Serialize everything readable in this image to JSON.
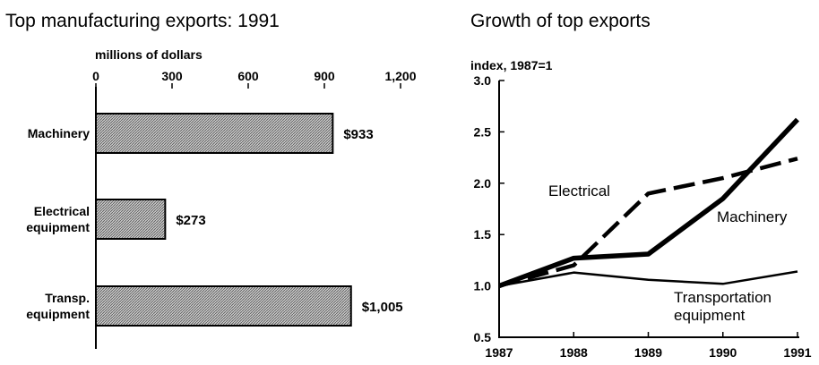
{
  "chart_data": [
    {
      "type": "bar",
      "orientation": "horizontal",
      "title": "Top manufacturing exports: 1991",
      "xlabel": "millions of dollars",
      "xlim": [
        0,
        1200
      ],
      "xticks": [
        "0",
        "300",
        "600",
        "900",
        "1,200"
      ],
      "categories": [
        [
          "Machinery"
        ],
        [
          "Electrical",
          "equipment"
        ],
        [
          "Transp.",
          "equipment"
        ]
      ],
      "values": [
        933,
        273,
        1005
      ],
      "value_labels": [
        "$933",
        "$273",
        "$1,005"
      ],
      "bar_fill": "hatched gray",
      "grid": false
    },
    {
      "type": "line",
      "title": "Growth of top exports",
      "ylabel": "index, 1987=1",
      "x": [
        "1987",
        "1988",
        "1989",
        "1990",
        "1991"
      ],
      "ylim": [
        0.5,
        3.0
      ],
      "yticks": [
        "0.5",
        "1.0",
        "1.5",
        "2.0",
        "2.5",
        "3.0"
      ],
      "grid": false,
      "series": [
        {
          "name": "Machinery",
          "label_lines": [
            "Machinery"
          ],
          "values": [
            1.0,
            1.27,
            1.31,
            1.85,
            2.62
          ],
          "style": "thick-solid"
        },
        {
          "name": "Electrical",
          "label_lines": [
            "Electrical"
          ],
          "values": [
            1.0,
            1.2,
            1.9,
            2.05,
            2.24
          ],
          "style": "dashed"
        },
        {
          "name": "Transportation equipment",
          "label_lines": [
            "Transportation",
            "equipment"
          ],
          "values": [
            1.0,
            1.13,
            1.06,
            1.02,
            1.14
          ],
          "style": "thin-solid"
        }
      ]
    }
  ]
}
